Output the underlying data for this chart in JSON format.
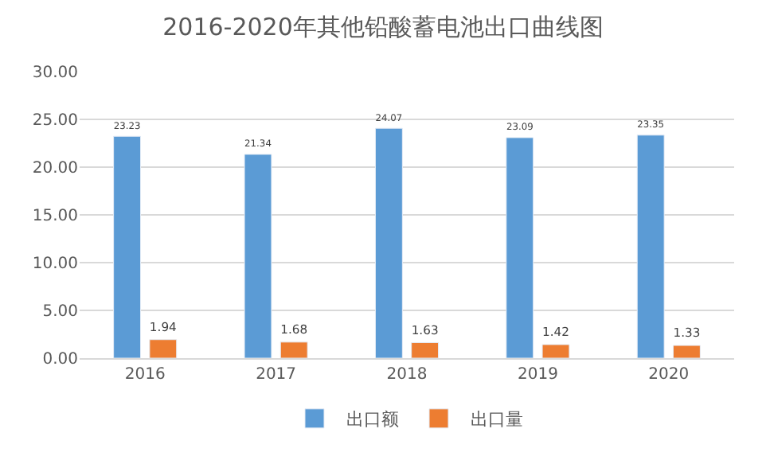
{
  "chart_data": {
    "type": "bar",
    "title": "2016-2020年其他铅酸蓄电池出口曲线图",
    "categories": [
      "2016",
      "2017",
      "2018",
      "2019",
      "2020"
    ],
    "series": [
      {
        "name": "出口额",
        "color": "#5b9bd5",
        "values": [
          23.23,
          21.34,
          24.07,
          23.09,
          23.35
        ]
      },
      {
        "name": "出口量",
        "color": "#ed7d31",
        "values": [
          1.94,
          1.68,
          1.63,
          1.42,
          1.33
        ]
      }
    ],
    "ylim": [
      0,
      30
    ],
    "yticks": [
      {
        "value": 0,
        "label": "0.00"
      },
      {
        "value": 5,
        "label": "5.00"
      },
      {
        "value": 10,
        "label": "10.00"
      },
      {
        "value": 15,
        "label": "15.00"
      },
      {
        "value": 20,
        "label": "20.00"
      },
      {
        "value": 25,
        "label": "25.00"
      },
      {
        "value": 30,
        "label": "30.00"
      }
    ],
    "grid": "y",
    "legend": "bottom",
    "data_labels": true
  }
}
